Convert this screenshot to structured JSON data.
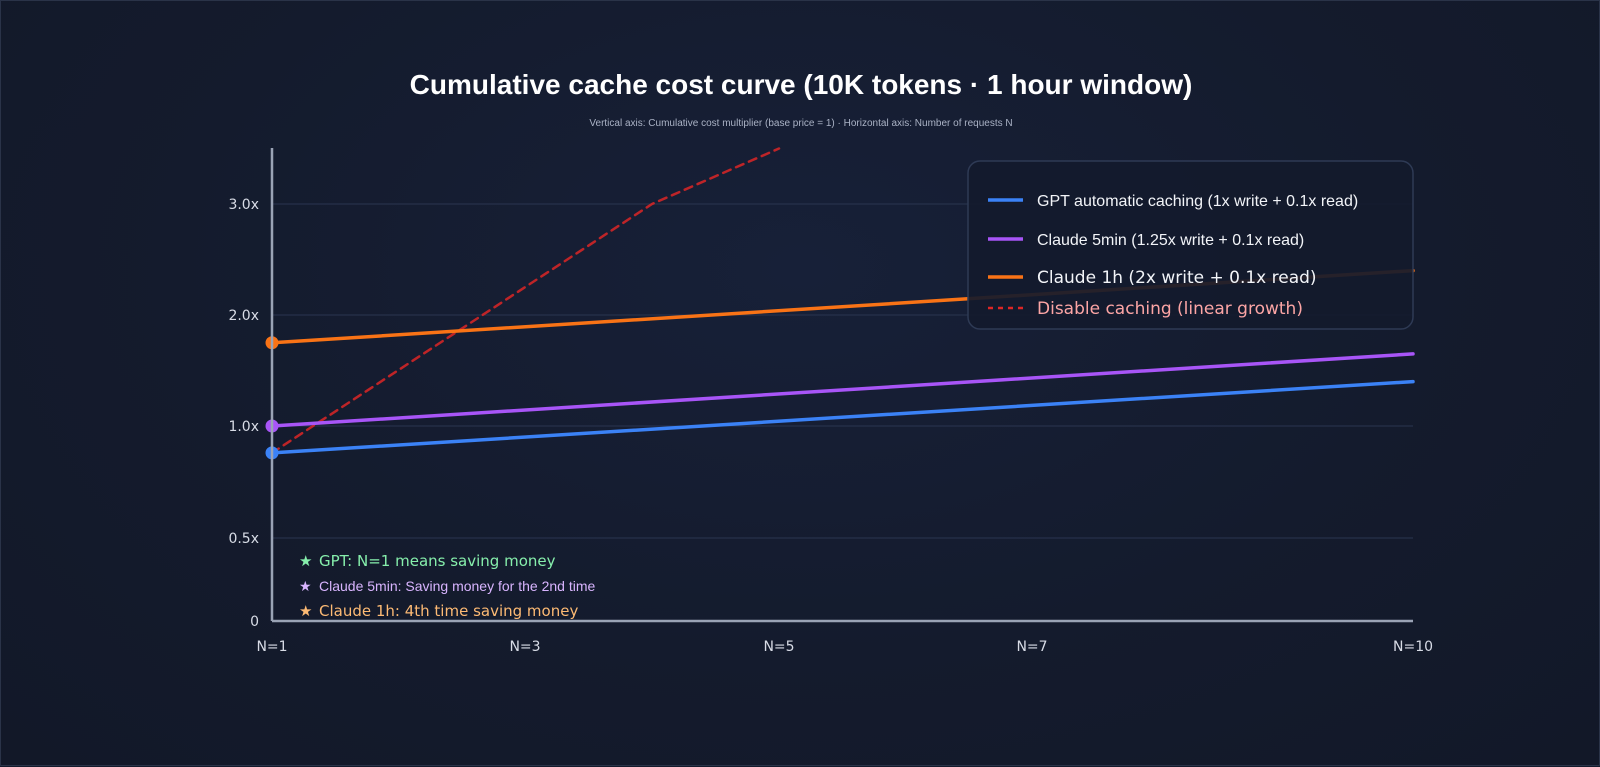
{
  "chart_data": {
    "type": "line",
    "title": "Cumulative cache cost curve (10K tokens · 1 hour window)",
    "subtitle": "Vertical axis: Cumulative cost multiplier (base price = 1) · Horizontal axis: Number of requests N",
    "x_tick_labels": [
      "N=1",
      "N=3",
      "N=5",
      "N=7",
      "N=10"
    ],
    "y_tick_labels": [
      "0",
      "0.5x",
      "1.0x",
      "2.0x",
      "3.0x"
    ],
    "y_tick_values": [
      0,
      0.5,
      1.0,
      2.0,
      3.0
    ],
    "grid": true,
    "legend_position": "top-right",
    "series": [
      {
        "name": "GPT automatic caching (1x write + 0.1x read)",
        "color": "#3b82f6",
        "style": "solid",
        "x": [
          1,
          10
        ],
        "y": [
          0.88,
          1.4
        ]
      },
      {
        "name": "Claude 5min (1.25x write + 0.1x read)",
        "color": "#a855f7",
        "style": "solid",
        "x": [
          1,
          10
        ],
        "y": [
          1.0,
          1.65
        ]
      },
      {
        "name": "Claude 1h (2x write + 0.1x read)",
        "color": "#f97316",
        "style": "solid",
        "x": [
          1,
          10
        ],
        "y": [
          1.75,
          2.4
        ]
      },
      {
        "name": "Disable caching (linear growth)",
        "color": "#dc2626",
        "style": "dashed",
        "x": [
          1,
          4,
          5
        ],
        "y": [
          0.88,
          3.0,
          3.5
        ]
      }
    ],
    "annotations": [
      {
        "icon": "star-icon",
        "text": "GPT: N=1 means saving money",
        "color": "#86efac"
      },
      {
        "icon": "star-icon",
        "text": "Claude 5min: Saving money for the 2nd time",
        "color": "#d8b4fe"
      },
      {
        "icon": "star-icon",
        "text": "Claude 1h: 4th time saving money",
        "color": "#fdba74"
      }
    ]
  }
}
